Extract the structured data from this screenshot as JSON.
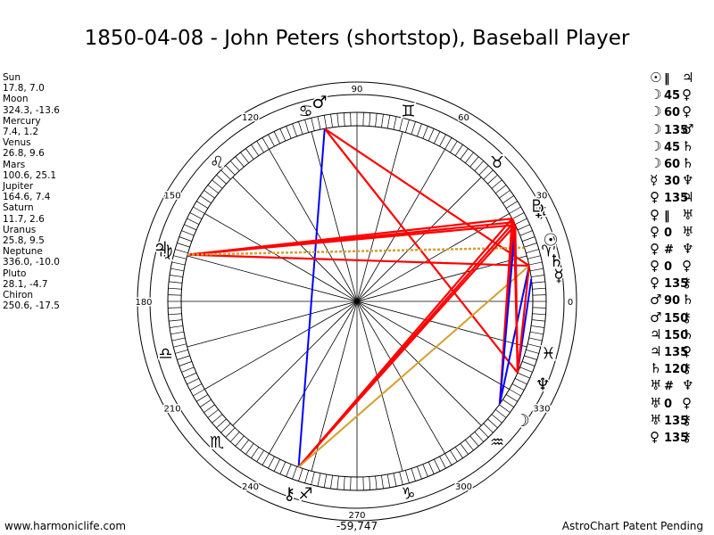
{
  "header": {
    "title": "1850-04-08 - John Peters (shortstop), Baseball Player"
  },
  "planets": [
    {
      "name": "Sun",
      "values": "17.8, 7.0"
    },
    {
      "name": "Moon",
      "values": "324.3, -13.6"
    },
    {
      "name": "Mercury",
      "values": "7.4, 1.2"
    },
    {
      "name": "Venus",
      "values": "26.8, 9.6"
    },
    {
      "name": "Mars",
      "values": "100.6, 25.1"
    },
    {
      "name": "Jupiter",
      "values": "164.6, 7.4"
    },
    {
      "name": "Saturn",
      "values": "11.7, 2.6"
    },
    {
      "name": "Uranus",
      "values": "25.8, 9.5"
    },
    {
      "name": "Neptune",
      "values": "336.0, -10.0"
    },
    {
      "name": "Pluto",
      "values": "28.1, -4.7"
    },
    {
      "name": "Chiron",
      "values": "250.6, -17.5"
    }
  ],
  "aspects": [
    {
      "p1": "☉",
      "aspect": "‖",
      "p2": "♃"
    },
    {
      "p1": "☽",
      "aspect": "45",
      "p2": "♀"
    },
    {
      "p1": "☽",
      "aspect": "60",
      "p2": "♀"
    },
    {
      "p1": "☽",
      "aspect": "135",
      "p2": "♂"
    },
    {
      "p1": "☽",
      "aspect": "45",
      "p2": "♄"
    },
    {
      "p1": "☽",
      "aspect": "60",
      "p2": "♄"
    },
    {
      "p1": "☿",
      "aspect": "30",
      "p2": "♆"
    },
    {
      "p1": "♀",
      "aspect": "135",
      "p2": "♃"
    },
    {
      "p1": "♀",
      "aspect": "‖",
      "p2": "♅"
    },
    {
      "p1": "♀",
      "aspect": "0",
      "p2": "♅"
    },
    {
      "p1": "♀",
      "aspect": "#",
      "p2": "♆"
    },
    {
      "p1": "♀",
      "aspect": "0",
      "p2": "♀"
    },
    {
      "p1": "♀",
      "aspect": "135",
      "p2": "⚷"
    },
    {
      "p1": "♂",
      "aspect": "90",
      "p2": "♄"
    },
    {
      "p1": "♂",
      "aspect": "150",
      "p2": "⚷"
    },
    {
      "p1": "♃",
      "aspect": "150",
      "p2": "♄"
    },
    {
      "p1": "♃",
      "aspect": "135",
      "p2": "♀"
    },
    {
      "p1": "♄",
      "aspect": "120",
      "p2": "⚷"
    },
    {
      "p1": "♅",
      "aspect": "#",
      "p2": "♆"
    },
    {
      "p1": "♅",
      "aspect": "0",
      "p2": "♀"
    },
    {
      "p1": "♅",
      "aspect": "135",
      "p2": "⚷"
    },
    {
      "p1": "♀",
      "aspect": "135",
      "p2": "⚷"
    }
  ],
  "footer": {
    "site": "www.harmoniclife.com",
    "coord": "-59,747",
    "patent": "AstroChart Patent Pending"
  },
  "chart_data": {
    "type": "radial",
    "degree_labels": [
      "0",
      "30",
      "60",
      "90",
      "120",
      "150",
      "180",
      "210",
      "240",
      "270",
      "300",
      "330"
    ],
    "zodiac_signs": [
      "♈",
      "♉",
      "♊",
      "♋",
      "♌",
      "♍",
      "♎",
      "♏",
      "♐",
      "♑",
      "♒",
      "♓"
    ],
    "bodies": [
      {
        "glyph": "☉",
        "longitude": 17.8
      },
      {
        "glyph": "☽",
        "longitude": 324.3
      },
      {
        "glyph": "☿",
        "longitude": 7.4
      },
      {
        "glyph": "♀",
        "longitude": 26.8
      },
      {
        "glyph": "♂",
        "longitude": 100.6
      },
      {
        "glyph": "♃",
        "longitude": 164.6
      },
      {
        "glyph": "♄",
        "longitude": 11.7
      },
      {
        "glyph": "♅",
        "longitude": 25.8
      },
      {
        "glyph": "♆",
        "longitude": 336.0
      },
      {
        "glyph": "♇",
        "longitude": 28.1
      },
      {
        "glyph": "⚷",
        "longitude": 250.6
      }
    ],
    "aspect_lines": [
      {
        "from": 100.6,
        "to": 336.0,
        "color": "#ff0000"
      },
      {
        "from": 100.6,
        "to": 250.6,
        "color": "#0000ff"
      },
      {
        "from": 100.6,
        "to": 11.7,
        "color": "#ff0000"
      },
      {
        "from": 164.6,
        "to": 26.8,
        "color": "#ff0000"
      },
      {
        "from": 164.6,
        "to": 25.8,
        "color": "#ff0000"
      },
      {
        "from": 164.6,
        "to": 28.1,
        "color": "#ff0000"
      },
      {
        "from": 164.6,
        "to": 11.7,
        "color": "#ff0000"
      },
      {
        "from": 164.6,
        "to": 17.8,
        "color": "#d4a030",
        "dashed": true
      },
      {
        "from": 250.6,
        "to": 26.8,
        "color": "#ff0000"
      },
      {
        "from": 250.6,
        "to": 25.8,
        "color": "#ff0000"
      },
      {
        "from": 250.6,
        "to": 28.1,
        "color": "#ff0000"
      },
      {
        "from": 250.6,
        "to": 11.7,
        "color": "#d4a030"
      },
      {
        "from": 324.3,
        "to": 26.8,
        "color": "#ff0000"
      },
      {
        "from": 324.3,
        "to": 28.1,
        "color": "#ff0000"
      },
      {
        "from": 324.3,
        "to": 11.7,
        "color": "#0000ff"
      },
      {
        "from": 324.3,
        "to": 25.8,
        "color": "#0000ff"
      },
      {
        "from": 7.4,
        "to": 336.0,
        "color": "#0000ff"
      },
      {
        "from": 25.8,
        "to": 336.0,
        "color": "#ff0000"
      },
      {
        "from": 26.8,
        "to": 336.0,
        "color": "#ff0000"
      },
      {
        "from": 26.8,
        "to": 28.1,
        "color": "#ff0000"
      },
      {
        "from": 11.7,
        "to": 336.0,
        "color": "#ff0000"
      }
    ]
  }
}
